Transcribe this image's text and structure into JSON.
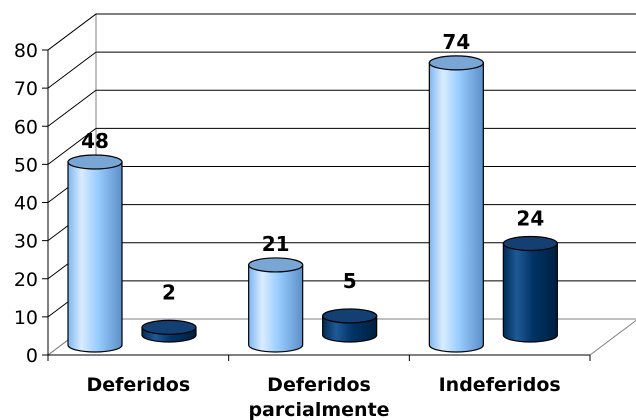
{
  "chart_data": {
    "type": "bar",
    "style": "3d-cylinder",
    "categories": [
      "Deferidos",
      "Deferidos parcialmente",
      "Indeferidos"
    ],
    "category_lines": [
      [
        "Deferidos"
      ],
      [
        "Deferidos",
        "parcialmente"
      ],
      [
        "Indeferidos"
      ]
    ],
    "series": [
      {
        "values": [
          48,
          21,
          74
        ],
        "color": "#99CCFF"
      },
      {
        "values": [
          2,
          5,
          24
        ],
        "color": "#003366"
      }
    ],
    "ylim": [
      0,
      80
    ],
    "yticks": [
      0,
      10,
      20,
      30,
      40,
      50,
      60,
      70,
      80
    ],
    "grid": true,
    "legend": "none"
  }
}
